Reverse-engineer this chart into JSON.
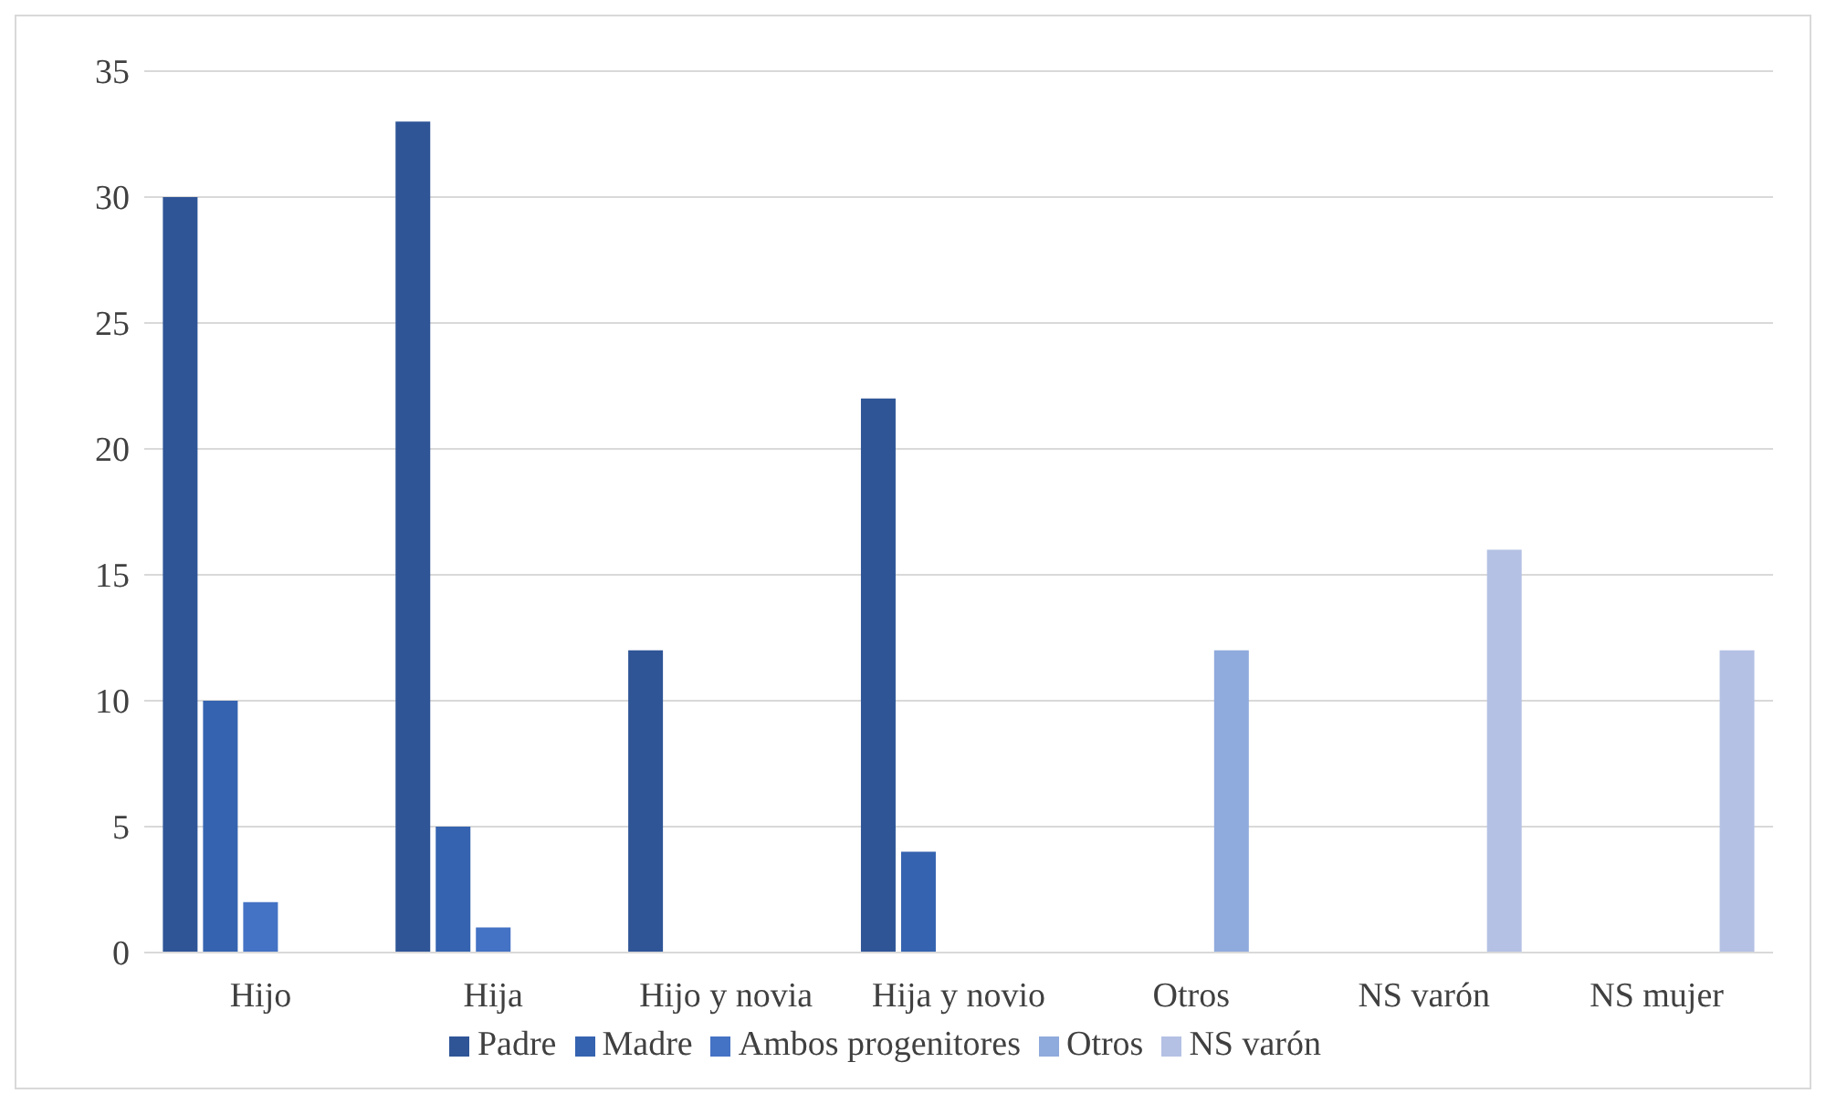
{
  "chart_data": {
    "type": "bar",
    "categories": [
      "Hijo",
      "Hija",
      "Hijo y novia",
      "Hija y novio",
      "Otros",
      "NS varón",
      "NS mujer"
    ],
    "series": [
      {
        "name": "Padre",
        "color": "#2f5597",
        "values": [
          30,
          33,
          12,
          22,
          null,
          null,
          null
        ]
      },
      {
        "name": "Madre",
        "color": "#3563b0",
        "values": [
          10,
          5,
          null,
          4,
          null,
          null,
          null
        ]
      },
      {
        "name": "Ambos progenitores",
        "color": "#4472c4",
        "values": [
          2,
          1,
          null,
          null,
          null,
          null,
          null
        ]
      },
      {
        "name": "Otros",
        "color": "#8faadc",
        "values": [
          null,
          null,
          null,
          null,
          12,
          null,
          null
        ]
      },
      {
        "name": "NS varón",
        "color": "#b4c1e4",
        "values": [
          null,
          null,
          null,
          null,
          null,
          16,
          12
        ]
      }
    ],
    "ylim": [
      0,
      35
    ],
    "yticks": [
      0,
      5,
      10,
      15,
      20,
      25,
      30,
      35
    ],
    "grid": "y",
    "legend": "bottom"
  }
}
